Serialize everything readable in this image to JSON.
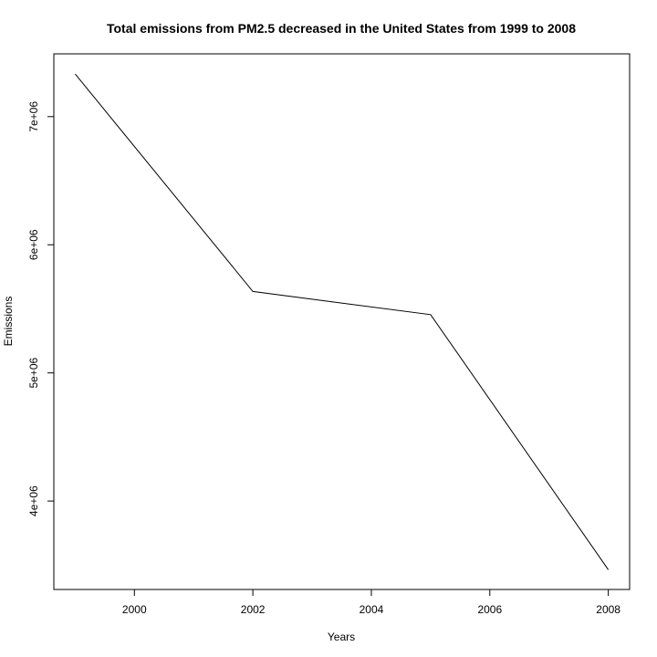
{
  "chart_data": {
    "type": "line",
    "title": "Total emissions from PM2.5 decreased in the United States from 1999 to 2008",
    "xlabel": "Years",
    "ylabel": "Emissions",
    "x": [
      1999,
      2002,
      2005,
      2008
    ],
    "series": [
      {
        "values": [
          7332967,
          5635780,
          5454703,
          3464206
        ]
      }
    ],
    "xlim": [
      1998.64,
      2008.36
    ],
    "ylim": [
      3310000,
      7490000
    ],
    "x_ticks": [
      2000,
      2002,
      2004,
      2006,
      2008
    ],
    "x_tick_labels": [
      "2000",
      "2002",
      "2004",
      "2006",
      "2008"
    ],
    "y_ticks": [
      4000000,
      5000000,
      6000000,
      7000000
    ],
    "y_tick_labels": [
      "4e+06",
      "5e+06",
      "6e+06",
      "7e+06"
    ],
    "grid": false,
    "line_color": "#000000"
  }
}
